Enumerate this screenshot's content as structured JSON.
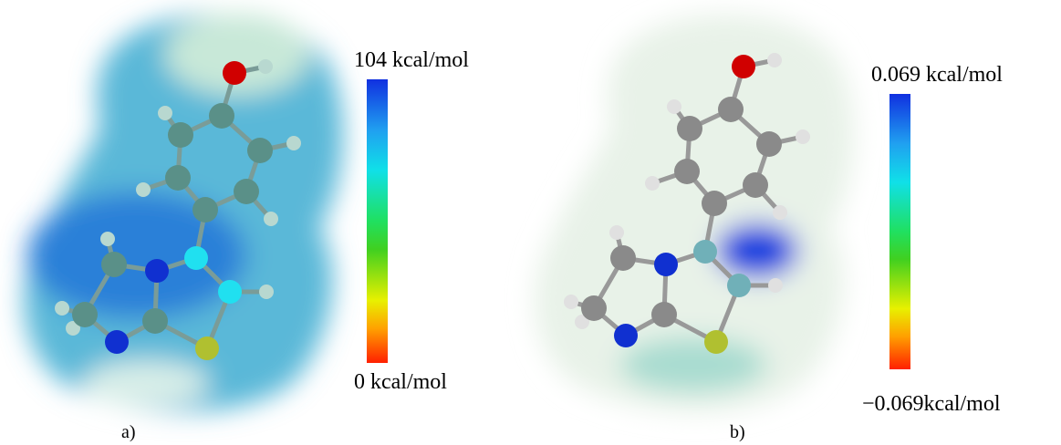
{
  "panels": [
    {
      "label": "a)",
      "scale_max": "104 kcal/mol",
      "scale_min": "0 kcal/mol"
    },
    {
      "label": "b)",
      "scale_max": "0.069 kcal/mol",
      "scale_min": "−0.069kcal/mol"
    }
  ]
}
